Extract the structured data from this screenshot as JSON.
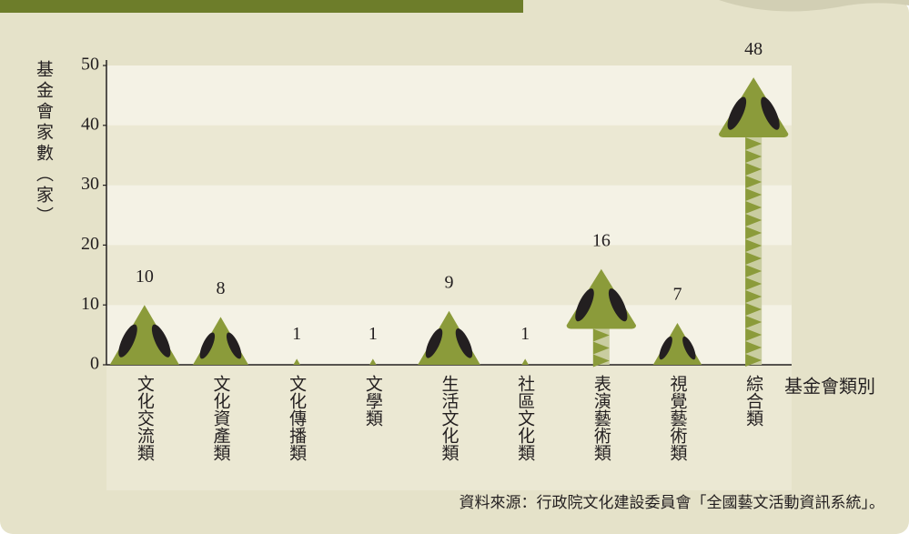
{
  "chart_data": {
    "type": "arrow-bar",
    "y_axis_label": "基金會家數（家）",
    "x_axis_label": "基金會類別",
    "source": "資料來源：行政院文化建設委員會「全國藝文活動資訊系統」。",
    "categories": [
      "文化交流類",
      "文化資產類",
      "文化傳播類",
      "文學類",
      "生活文化類",
      "社區文化類",
      "表演藝術類",
      "視覺藝術類",
      "綜合類"
    ],
    "values": [
      10,
      8,
      1,
      1,
      9,
      1,
      16,
      7,
      48
    ],
    "color": "#8b9b3a",
    "ylim": [
      0,
      50
    ],
    "yticks": [
      0,
      10,
      20,
      30,
      40,
      50
    ],
    "grid": true
  }
}
